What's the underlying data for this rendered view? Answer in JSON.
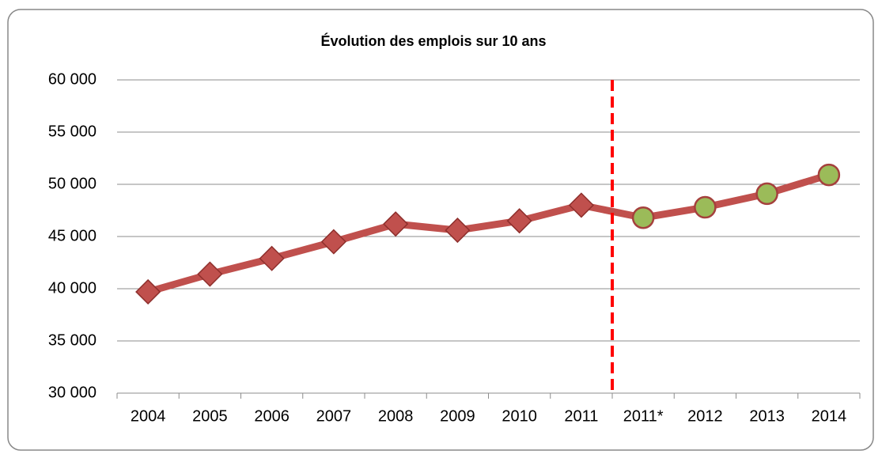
{
  "chart_data": {
    "type": "line",
    "title": "Évolution des emplois sur 10 ans",
    "categories": [
      "2004",
      "2005",
      "2006",
      "2007",
      "2008",
      "2009",
      "2010",
      "2011",
      "2011*",
      "2012",
      "2013",
      "2014"
    ],
    "values": [
      39700,
      41400,
      42900,
      44500,
      46200,
      45600,
      46500,
      48000,
      46800,
      47800,
      49100,
      50900
    ],
    "color": "#c0504d",
    "marker_shapes": [
      "diamond",
      "diamond",
      "diamond",
      "diamond",
      "diamond",
      "diamond",
      "diamond",
      "diamond",
      "circle",
      "circle",
      "circle",
      "circle"
    ],
    "marker_colors": [
      "#c0504d",
      "#c0504d",
      "#c0504d",
      "#c0504d",
      "#c0504d",
      "#c0504d",
      "#c0504d",
      "#c0504d",
      "#9bbb59",
      "#9bbb59",
      "#9bbb59",
      "#9bbb59"
    ],
    "divider": {
      "after_category": 7,
      "color": "#ff0000",
      "style": "dashed"
    },
    "ylim": [
      30000,
      60000
    ],
    "yticks": [
      {
        "value": 30000,
        "label": "30 000"
      },
      {
        "value": 35000,
        "label": "35 000"
      },
      {
        "value": 40000,
        "label": "40 000"
      },
      {
        "value": 45000,
        "label": "45 000"
      },
      {
        "value": 50000,
        "label": "50 000"
      },
      {
        "value": 55000,
        "label": "55 000"
      },
      {
        "value": 60000,
        "label": "60 000"
      }
    ],
    "grid": true
  }
}
